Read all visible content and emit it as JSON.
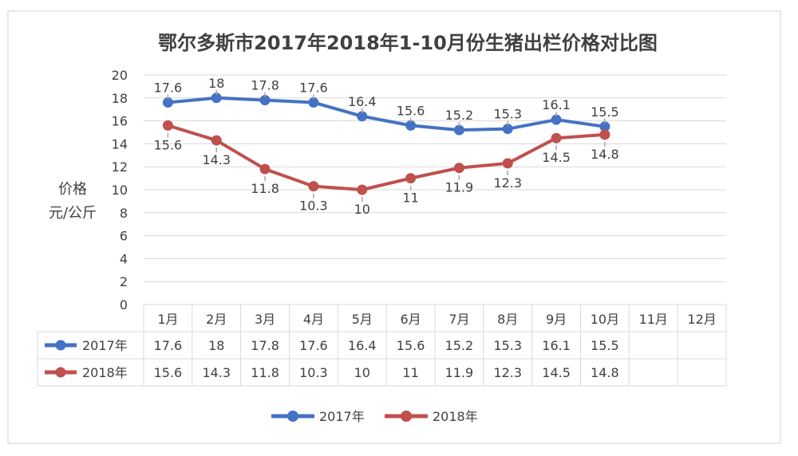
{
  "chart_data": {
    "type": "line",
    "title": "鄂尔多斯市2017年2018年1-10月份生猪出栏价格对比图",
    "ylabel_line1": "价格",
    "ylabel_line2": "元/公斤",
    "ylim": [
      0,
      20
    ],
    "yticks": [
      0,
      2,
      4,
      6,
      8,
      10,
      12,
      14,
      16,
      18,
      20
    ],
    "categories": [
      "1月",
      "2月",
      "3月",
      "4月",
      "5月",
      "6月",
      "7月",
      "8月",
      "9月",
      "10月",
      "11月",
      "12月"
    ],
    "grid": true,
    "legend_position": "bottom",
    "data_table": true,
    "series": [
      {
        "name": "2017年",
        "color": "#4472C4",
        "values": [
          17.6,
          18,
          17.8,
          17.6,
          16.4,
          15.6,
          15.2,
          15.3,
          16.1,
          15.5,
          null,
          null
        ],
        "labels": [
          "17.6",
          "18",
          "17.8",
          "17.6",
          "16.4",
          "15.6",
          "15.2",
          "15.3",
          "16.1",
          "15.5",
          "",
          ""
        ]
      },
      {
        "name": "2018年",
        "color": "#C0504D",
        "values": [
          15.6,
          14.3,
          11.8,
          10.3,
          10,
          11,
          11.9,
          12.3,
          14.5,
          14.8,
          null,
          null
        ],
        "labels": [
          "15.6",
          "14.3",
          "11.8",
          "10.3",
          "10",
          "11",
          "11.9",
          "12.3",
          "14.5",
          "14.8",
          "",
          ""
        ]
      }
    ]
  }
}
